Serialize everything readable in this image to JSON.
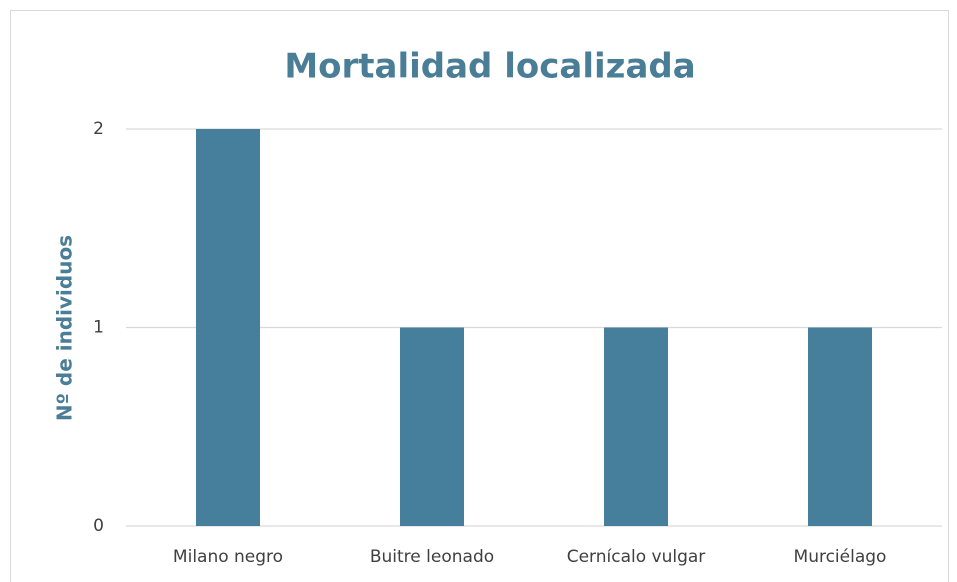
{
  "chart_data": {
    "type": "bar",
    "title": "Mortalidad localizada",
    "y_label": "Nº de individuos",
    "categories": [
      "Milano negro",
      "Buitre leonado",
      "Cernícalo vulgar",
      "Murciélago"
    ],
    "values": [
      2,
      1,
      1,
      1
    ],
    "color": "#467f9b",
    "ylim": [
      0,
      2
    ],
    "yticks": [
      0,
      1,
      2
    ],
    "grid": true
  }
}
